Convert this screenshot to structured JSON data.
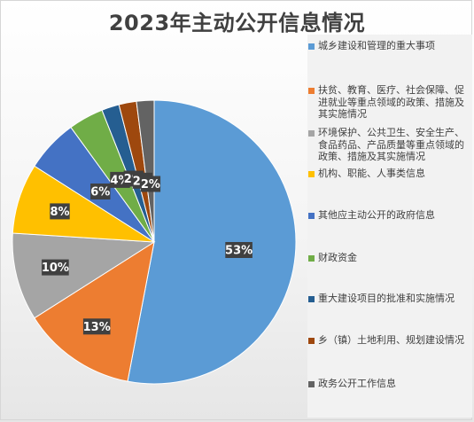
{
  "chart_data": {
    "type": "pie",
    "title": "2023年主动公开信息情况",
    "categories": [
      "城乡建设和管理的重大事项",
      "扶贫、教育、医疗、社会保障、促进就业等重点领域的政策、措施及其实施情况",
      "环境保护、公共卫生、安全生产、食品药品、产品质量等重点领域的政策、措施及其实施情况",
      "机构、职能、人事类信息",
      "其他应主动公开的政府信息",
      "财政资金",
      "重大建设项目的批准和实施情况",
      "乡（镇）土地利用、规划建设情况",
      "政务公开工作信息"
    ],
    "values": [
      53,
      13,
      10,
      8,
      6,
      4,
      2,
      2,
      2
    ],
    "data_labels": [
      "53%",
      "13%",
      "10%",
      "8%",
      "6%",
      "4%",
      "2%",
      "2%",
      "2%"
    ],
    "colors": [
      "#5b9bd5",
      "#ed7d31",
      "#a5a5a5",
      "#ffc000",
      "#4472c4",
      "#70ad47",
      "#255e91",
      "#9e480e",
      "#636363"
    ],
    "legend_position": "right",
    "start_angle": "12 o'clock, clockwise"
  }
}
